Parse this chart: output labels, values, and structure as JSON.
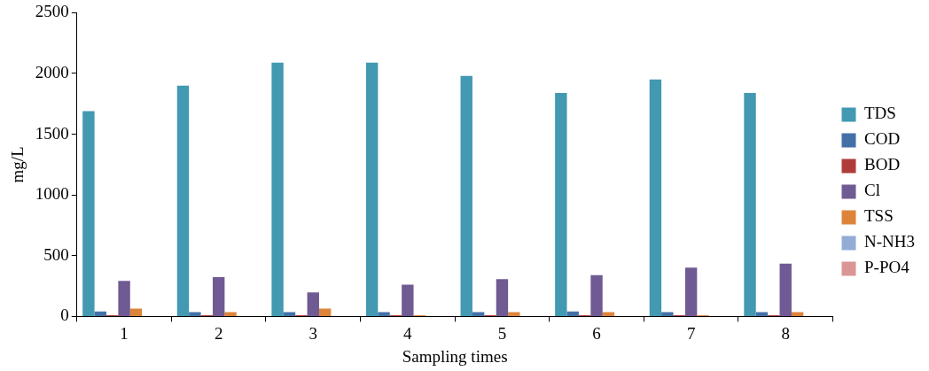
{
  "chart_data": {
    "type": "bar",
    "xlabel": "Sampling times",
    "ylabel": "mg/L",
    "categories": [
      "1",
      "2",
      "3",
      "4",
      "5",
      "6",
      "7",
      "8"
    ],
    "series": [
      {
        "name": "TDS",
        "color": "#4299b1",
        "values": [
          1690,
          1900,
          2090,
          2090,
          1980,
          1840,
          1950,
          1840
        ]
      },
      {
        "name": "COD",
        "color": "#4470a8",
        "values": [
          42,
          35,
          35,
          35,
          35,
          42,
          35,
          35
        ]
      },
      {
        "name": "BOD",
        "color": "#b03b3a",
        "values": [
          10,
          10,
          10,
          10,
          10,
          10,
          10,
          10
        ]
      },
      {
        "name": "Cl",
        "color": "#6f5a93",
        "values": [
          292,
          324,
          198,
          261,
          308,
          340,
          402,
          434
        ]
      },
      {
        "name": "TSS",
        "color": "#dd843a",
        "values": [
          65,
          35,
          65,
          10,
          35,
          35,
          10,
          35
        ]
      },
      {
        "name": "N-NH3",
        "color": "#93acd6",
        "values": [
          0,
          0,
          0,
          0,
          0,
          0,
          0,
          0
        ]
      },
      {
        "name": "P-PO4",
        "color": "#d99694",
        "values": [
          0,
          0,
          0,
          0,
          0,
          0,
          0,
          0
        ]
      }
    ],
    "ylim": [
      0,
      2500
    ],
    "yticks": [
      0,
      500,
      1000,
      1500,
      2000,
      2500
    ],
    "grid": false,
    "legend": "right"
  }
}
